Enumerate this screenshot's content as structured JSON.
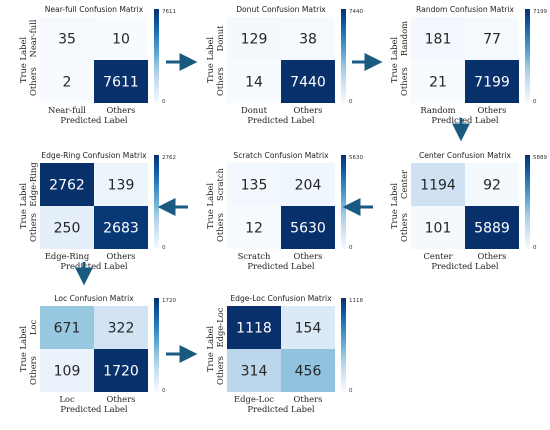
{
  "chart_data": [
    {
      "type": "heatmap",
      "title": "Near-full Confusion Matrix",
      "row_labels": [
        "Near-full",
        "Others"
      ],
      "col_labels": [
        "Near-full",
        "Others"
      ],
      "xlabel": "Predicted Label",
      "ylabel": "True Label",
      "values": [
        [
          35,
          10
        ],
        [
          2,
          7611
        ]
      ],
      "colorbar": {
        "min": 0,
        "max": 7611,
        "ticks": [
          "0",
          "7611"
        ]
      }
    },
    {
      "type": "heatmap",
      "title": "Donut Confusion Matrix",
      "row_labels": [
        "Donut",
        "Others"
      ],
      "col_labels": [
        "Donut",
        "Others"
      ],
      "xlabel": "Predicted Label",
      "ylabel": "True Label",
      "values": [
        [
          129,
          38
        ],
        [
          14,
          7440
        ]
      ],
      "colorbar": {
        "min": 0,
        "max": 7440,
        "ticks": [
          "0",
          "7440"
        ]
      }
    },
    {
      "type": "heatmap",
      "title": "Random Confusion Matrix",
      "row_labels": [
        "Random",
        "Others"
      ],
      "col_labels": [
        "Random",
        "Others"
      ],
      "xlabel": "Predicted Label",
      "ylabel": "True Label",
      "values": [
        [
          181,
          77
        ],
        [
          21,
          7199
        ]
      ],
      "colorbar": {
        "min": 0,
        "max": 7199,
        "ticks": [
          "0",
          "7199"
        ]
      }
    },
    {
      "type": "heatmap",
      "title": "Edge-Ring Confusion Matrix",
      "row_labels": [
        "Edge-Ring",
        "Others"
      ],
      "col_labels": [
        "Edge-Ring",
        "Others"
      ],
      "xlabel": "Predicted Label",
      "ylabel": "True Label",
      "values": [
        [
          2762,
          139
        ],
        [
          250,
          2683
        ]
      ],
      "colorbar": {
        "min": 0,
        "max": 2762,
        "ticks": [
          "0",
          "2762"
        ]
      }
    },
    {
      "type": "heatmap",
      "title": "Scratch Confusion Matrix",
      "row_labels": [
        "Scratch",
        "Others"
      ],
      "col_labels": [
        "Scratch",
        "Others"
      ],
      "xlabel": "Predicted Label",
      "ylabel": "True Label",
      "values": [
        [
          135,
          204
        ],
        [
          12,
          5630
        ]
      ],
      "colorbar": {
        "min": 0,
        "max": 5630,
        "ticks": [
          "0",
          "5630"
        ]
      }
    },
    {
      "type": "heatmap",
      "title": "Center Confusion Matrix",
      "row_labels": [
        "Center",
        "Others"
      ],
      "col_labels": [
        "Center",
        "Others"
      ],
      "xlabel": "Predicted Label",
      "ylabel": "True Label",
      "values": [
        [
          1194,
          92
        ],
        [
          101,
          5889
        ]
      ],
      "colorbar": {
        "min": 0,
        "max": 5889,
        "ticks": [
          "0",
          "5889"
        ]
      }
    },
    {
      "type": "heatmap",
      "title": "Loc Confusion Matrix",
      "row_labels": [
        "Loc",
        "Others"
      ],
      "col_labels": [
        "Loc",
        "Others"
      ],
      "xlabel": "Predicted Label",
      "ylabel": "True Label",
      "values": [
        [
          671,
          322
        ],
        [
          109,
          1720
        ]
      ],
      "colorbar": {
        "min": 0,
        "max": 1720,
        "ticks": [
          "0",
          "1720"
        ]
      }
    },
    {
      "type": "heatmap",
      "title": "Edge-Loc Confusion Matrix",
      "row_labels": [
        "Edge-Loc",
        "Others"
      ],
      "col_labels": [
        "Edge-Loc",
        "Others"
      ],
      "xlabel": "Predicted Label",
      "ylabel": "True Label",
      "values": [
        [
          1118,
          154
        ],
        [
          314,
          456
        ]
      ],
      "colorbar": {
        "min": 0,
        "max": 1118,
        "ticks": [
          "0",
          "1118"
        ]
      }
    }
  ],
  "colors": {
    "low": "#f7fbff",
    "high": "#08306b",
    "arrow": "#1a5a80"
  }
}
